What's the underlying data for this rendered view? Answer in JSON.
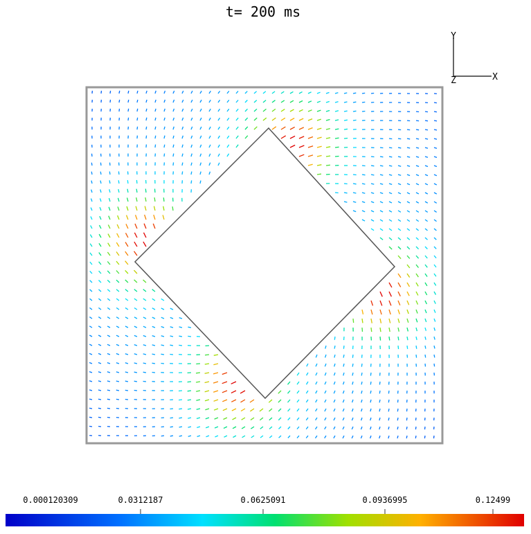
{
  "header": {
    "title": "t= 200 ms"
  },
  "axes_triad": {
    "y_label": "Y",
    "z_label": "Z",
    "x_label": "X"
  },
  "colorbar": {
    "labels": [
      "0.000120309",
      "0.0312187",
      "0.0625091",
      "0.0936995",
      "0.12499"
    ]
  }
}
